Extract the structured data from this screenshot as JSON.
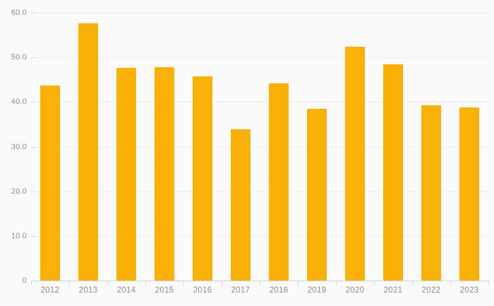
{
  "chart_data": {
    "type": "bar",
    "title": "",
    "xlabel": "",
    "ylabel": "",
    "categories": [
      "2012",
      "2013",
      "2014",
      "2015",
      "2016",
      "2017",
      "2018",
      "2019",
      "2020",
      "2021",
      "2022",
      "2023"
    ],
    "values": [
      43.7,
      57.7,
      47.7,
      47.8,
      45.8,
      33.9,
      44.2,
      38.4,
      52.4,
      48.4,
      39.3,
      38.8
    ],
    "ylim": [
      0,
      60
    ],
    "y_ticks": [
      {
        "value": 0,
        "label": "0"
      },
      {
        "value": 10,
        "label": "10.0"
      },
      {
        "value": 20,
        "label": "20.0"
      },
      {
        "value": 30,
        "label": "30.0"
      },
      {
        "value": 40,
        "label": "40.0"
      },
      {
        "value": 50,
        "label": "50.0"
      },
      {
        "value": 60,
        "label": "60.0"
      }
    ],
    "grid": true,
    "legend": false
  },
  "theme": {
    "background_color": "#fafafa",
    "bar_color": "#f9b007",
    "gridline_color": "#ededed",
    "grid_tick_color": "#d8d8d8",
    "axis_color": "#ccd3dd",
    "label_color": "#8a8a8a"
  }
}
